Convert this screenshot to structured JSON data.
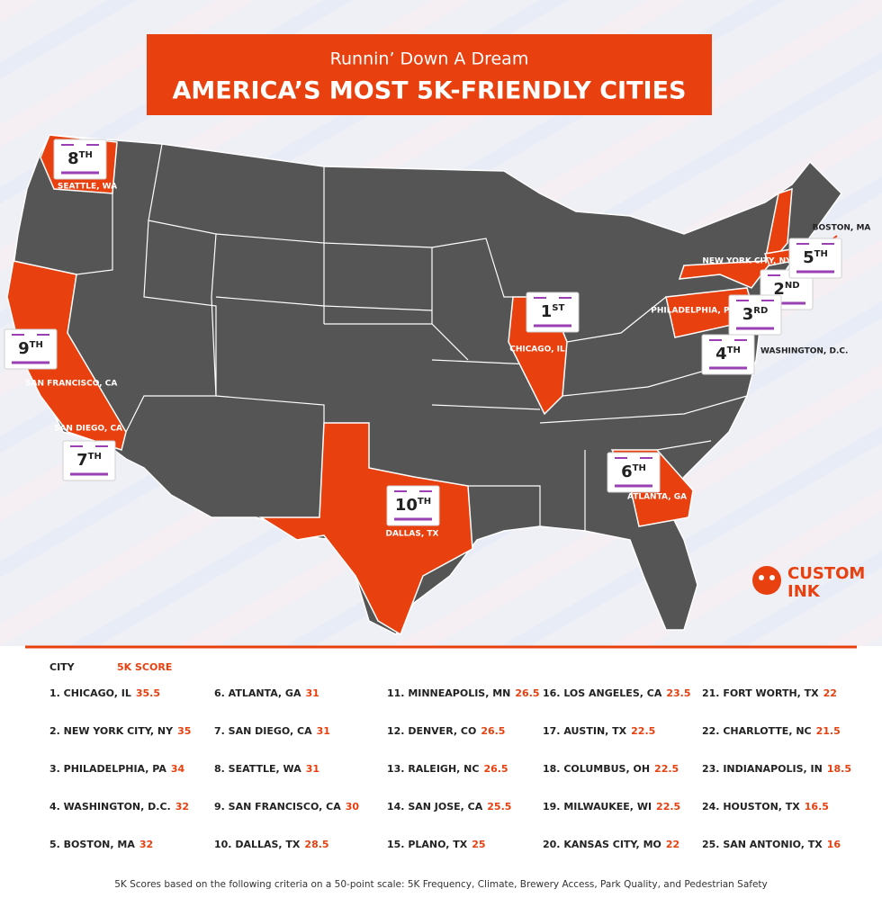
{
  "header": {
    "subtitle": "Runnin’ Down A Dream",
    "title": "AMERICA’S MOST 5K-FRIENDLY CITIES"
  },
  "markers": [
    {
      "rank": "1",
      "suffix": "ST",
      "city": "CHICAGO, IL"
    },
    {
      "rank": "2",
      "suffix": "ND",
      "city": "NEW YORK CITY, NY"
    },
    {
      "rank": "3",
      "suffix": "RD",
      "city": "PHILADELPHIA, PA"
    },
    {
      "rank": "4",
      "suffix": "TH",
      "city": "WASHINGTON, D.C."
    },
    {
      "rank": "5",
      "suffix": "TH",
      "city": "BOSTON, MA"
    },
    {
      "rank": "6",
      "suffix": "TH",
      "city": "ATLANTA, GA"
    },
    {
      "rank": "7",
      "suffix": "TH",
      "city": "SAN DIEGO, CA"
    },
    {
      "rank": "8",
      "suffix": "TH",
      "city": "SEATTLE, WA"
    },
    {
      "rank": "9",
      "suffix": "TH",
      "city": "SAN FRANCISCO, CA"
    },
    {
      "rank": "10",
      "suffix": "TH",
      "city": "DALLAS, TX"
    }
  ],
  "logo": [
    "CUSTOM",
    "INK"
  ],
  "table": {
    "headers": [
      "CITY",
      "5K SCORE"
    ],
    "rows": [
      {
        "city": "1. CHICAGO, IL",
        "score": 35.5
      },
      {
        "city": "2. NEW YORK CITY, NY",
        "score": 35
      },
      {
        "city": "3. PHILADELPHIA, PA",
        "score": 34
      },
      {
        "city": "4. WASHINGTON, D.C.",
        "score": 32
      },
      {
        "city": "5. BOSTON, MA",
        "score": 32
      },
      {
        "city": "6. ATLANTA, GA",
        "score": 31
      },
      {
        "city": "7. SAN DIEGO, CA",
        "score": 31
      },
      {
        "city": "8. SEATTLE, WA",
        "score": 31
      },
      {
        "city": "9. SAN FRANCISCO, CA",
        "score": 30
      },
      {
        "city": "10. DALLAS, TX",
        "score": 28.5
      },
      {
        "city": "11. MINNEAPOLIS, MN",
        "score": 26.5
      },
      {
        "city": "12. DENVER, CO",
        "score": 26.5
      },
      {
        "city": "13. RALEIGH, NC",
        "score": 26.5
      },
      {
        "city": "14. SAN JOSE, CA",
        "score": 25.5
      },
      {
        "city": "15. PLANO, TX",
        "score": 25
      },
      {
        "city": "16. LOS ANGELES, CA",
        "score": 23.5
      },
      {
        "city": "17. AUSTIN, TX",
        "score": 22.5
      },
      {
        "city": "18. COLUMBUS, OH",
        "score": 22.5
      },
      {
        "city": "19. MILWAUKEE, WI",
        "score": 22.5
      },
      {
        "city": "20. KANSAS CITY, MO",
        "score": 22
      },
      {
        "city": "21. FORT WORTH, TX",
        "score": 22
      },
      {
        "city": "22. CHARLOTTE, NC",
        "score": 21.5
      },
      {
        "city": "23. INDIANAPOLIS, IN",
        "score": 18.5
      },
      {
        "city": "24. HOUSTON, TX",
        "score": 16.5
      },
      {
        "city": "25. SAN ANTONIO, TX",
        "score": 16
      }
    ]
  },
  "footnote": "5K Scores based on the following criteria on a 50-point scale: 5K Frequency, Climate, Brewery Access, Park Quality, and Pedestrian Safety"
}
